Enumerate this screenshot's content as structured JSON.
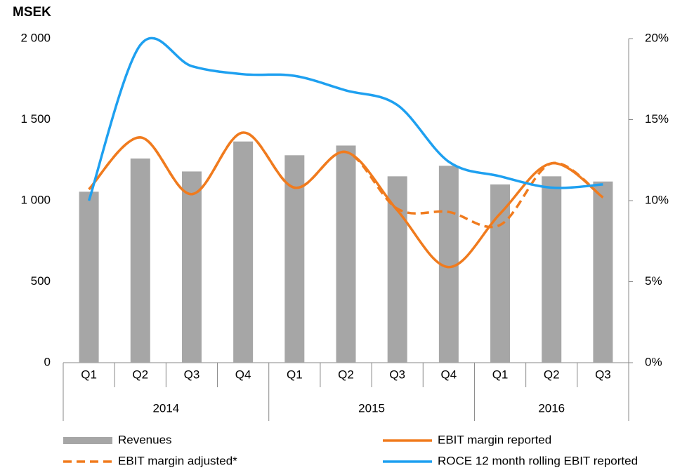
{
  "chart_data": {
    "type": "bar-line",
    "y_label": "MSEK",
    "categories": [
      "Q1",
      "Q2",
      "Q3",
      "Q4",
      "Q1",
      "Q2",
      "Q3",
      "Q4",
      "Q1",
      "Q2",
      "Q3"
    ],
    "groups": [
      {
        "label": "2014",
        "count": 4
      },
      {
        "label": "2015",
        "count": 4
      },
      {
        "label": "2016",
        "count": 3
      }
    ],
    "ylim": [
      0,
      2000
    ],
    "yticks": [
      0,
      500,
      {
        "value": 1000,
        "label": "1 000"
      },
      {
        "value": 1500,
        "label": "1 500"
      },
      {
        "value": 2000,
        "label": "2 000"
      }
    ],
    "y2lim": [
      0,
      20
    ],
    "y2ticks": [
      {
        "value": 0,
        "label": "0%"
      },
      {
        "value": 5,
        "label": "5%"
      },
      {
        "value": 10,
        "label": "10%"
      },
      {
        "value": 15,
        "label": "15%"
      },
      {
        "value": 20,
        "label": "20%"
      }
    ],
    "series": [
      {
        "name": "Revenues",
        "type": "bar",
        "color": "#a6a6a6",
        "values": [
          1055,
          1260,
          1180,
          1365,
          1280,
          1340,
          1150,
          1215,
          1100,
          1150,
          1118
        ]
      },
      {
        "name": "EBIT margin reported",
        "type": "line",
        "axis": "y2",
        "color": "#f07b1e",
        "dash": false,
        "values": [
          10.7,
          13.9,
          10.4,
          14.2,
          10.8,
          13.0,
          9.4,
          5.9,
          9.2,
          12.3,
          10.2
        ]
      },
      {
        "name": "EBIT margin adjusted*",
        "type": "line",
        "axis": "y2",
        "color": "#f07b1e",
        "dash": true,
        "values": [
          10.7,
          13.9,
          10.4,
          14.2,
          10.8,
          13.0,
          9.5,
          9.3,
          8.5,
          12.3,
          10.2
        ]
      },
      {
        "name": "ROCE 12 month rolling EBIT reported",
        "type": "line",
        "axis": "y2",
        "color": "#1ea0f0",
        "dash": false,
        "values": [
          10.0,
          19.6,
          18.3,
          17.8,
          17.7,
          16.8,
          15.9,
          12.4,
          11.5,
          10.8,
          11.0
        ]
      }
    ]
  }
}
